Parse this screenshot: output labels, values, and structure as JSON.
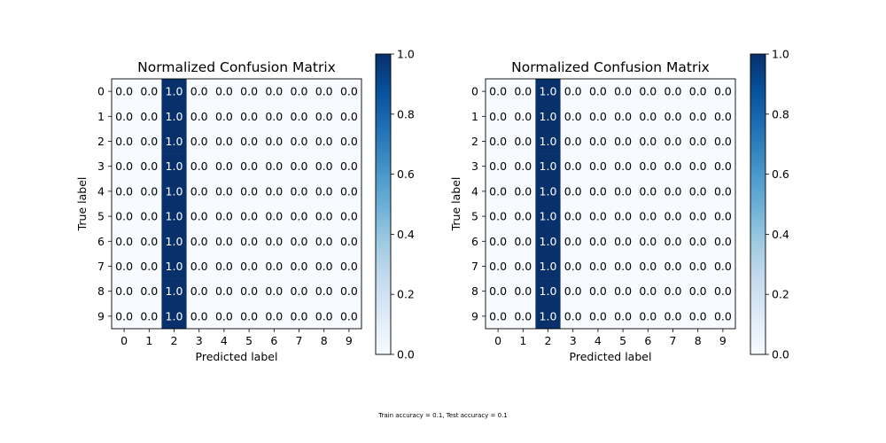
{
  "footnote": "Train accuracy = 0.1, Test accuracy = 0.1",
  "colormap": {
    "name": "Blues",
    "low": "#f7fbff",
    "high": "#08306b",
    "stops": [
      "#f7fbff",
      "#deebf7",
      "#c6dbef",
      "#9ecae1",
      "#6baed6",
      "#4292c6",
      "#2171b5",
      "#08519c",
      "#08306b"
    ]
  },
  "chart_data": [
    {
      "type": "heatmap",
      "title": "Normalized Confusion Matrix",
      "xlabel": "Predicted label",
      "ylabel": "True label",
      "x_tick_labels": [
        "0",
        "1",
        "2",
        "3",
        "4",
        "5",
        "6",
        "7",
        "8",
        "9"
      ],
      "y_tick_labels": [
        "0",
        "1",
        "2",
        "3",
        "4",
        "5",
        "6",
        "7",
        "8",
        "9"
      ],
      "matrix": [
        [
          0.0,
          0.0,
          1.0,
          0.0,
          0.0,
          0.0,
          0.0,
          0.0,
          0.0,
          0.0
        ],
        [
          0.0,
          0.0,
          1.0,
          0.0,
          0.0,
          0.0,
          0.0,
          0.0,
          0.0,
          0.0
        ],
        [
          0.0,
          0.0,
          1.0,
          0.0,
          0.0,
          0.0,
          0.0,
          0.0,
          0.0,
          0.0
        ],
        [
          0.0,
          0.0,
          1.0,
          0.0,
          0.0,
          0.0,
          0.0,
          0.0,
          0.0,
          0.0
        ],
        [
          0.0,
          0.0,
          1.0,
          0.0,
          0.0,
          0.0,
          0.0,
          0.0,
          0.0,
          0.0
        ],
        [
          0.0,
          0.0,
          1.0,
          0.0,
          0.0,
          0.0,
          0.0,
          0.0,
          0.0,
          0.0
        ],
        [
          0.0,
          0.0,
          1.0,
          0.0,
          0.0,
          0.0,
          0.0,
          0.0,
          0.0,
          0.0
        ],
        [
          0.0,
          0.0,
          1.0,
          0.0,
          0.0,
          0.0,
          0.0,
          0.0,
          0.0,
          0.0
        ],
        [
          0.0,
          0.0,
          1.0,
          0.0,
          0.0,
          0.0,
          0.0,
          0.0,
          0.0,
          0.0
        ],
        [
          0.0,
          0.0,
          1.0,
          0.0,
          0.0,
          0.0,
          0.0,
          0.0,
          0.0,
          0.0
        ]
      ],
      "colorbar": {
        "ticks": [
          "0.0",
          "0.2",
          "0.4",
          "0.6",
          "0.8",
          "1.0"
        ],
        "vmin": 0.0,
        "vmax": 1.0
      }
    },
    {
      "type": "heatmap",
      "title": "Normalized Confusion Matrix",
      "xlabel": "Predicted label",
      "ylabel": "True label",
      "x_tick_labels": [
        "0",
        "1",
        "2",
        "3",
        "4",
        "5",
        "6",
        "7",
        "8",
        "9"
      ],
      "y_tick_labels": [
        "0",
        "1",
        "2",
        "3",
        "4",
        "5",
        "6",
        "7",
        "8",
        "9"
      ],
      "matrix": [
        [
          0.0,
          0.0,
          1.0,
          0.0,
          0.0,
          0.0,
          0.0,
          0.0,
          0.0,
          0.0
        ],
        [
          0.0,
          0.0,
          1.0,
          0.0,
          0.0,
          0.0,
          0.0,
          0.0,
          0.0,
          0.0
        ],
        [
          0.0,
          0.0,
          1.0,
          0.0,
          0.0,
          0.0,
          0.0,
          0.0,
          0.0,
          0.0
        ],
        [
          0.0,
          0.0,
          1.0,
          0.0,
          0.0,
          0.0,
          0.0,
          0.0,
          0.0,
          0.0
        ],
        [
          0.0,
          0.0,
          1.0,
          0.0,
          0.0,
          0.0,
          0.0,
          0.0,
          0.0,
          0.0
        ],
        [
          0.0,
          0.0,
          1.0,
          0.0,
          0.0,
          0.0,
          0.0,
          0.0,
          0.0,
          0.0
        ],
        [
          0.0,
          0.0,
          1.0,
          0.0,
          0.0,
          0.0,
          0.0,
          0.0,
          0.0,
          0.0
        ],
        [
          0.0,
          0.0,
          1.0,
          0.0,
          0.0,
          0.0,
          0.0,
          0.0,
          0.0,
          0.0
        ],
        [
          0.0,
          0.0,
          1.0,
          0.0,
          0.0,
          0.0,
          0.0,
          0.0,
          0.0,
          0.0
        ],
        [
          0.0,
          0.0,
          1.0,
          0.0,
          0.0,
          0.0,
          0.0,
          0.0,
          0.0,
          0.0
        ]
      ],
      "colorbar": {
        "ticks": [
          "0.0",
          "0.2",
          "0.4",
          "0.6",
          "0.8",
          "1.0"
        ],
        "vmin": 0.0,
        "vmax": 1.0
      }
    }
  ]
}
